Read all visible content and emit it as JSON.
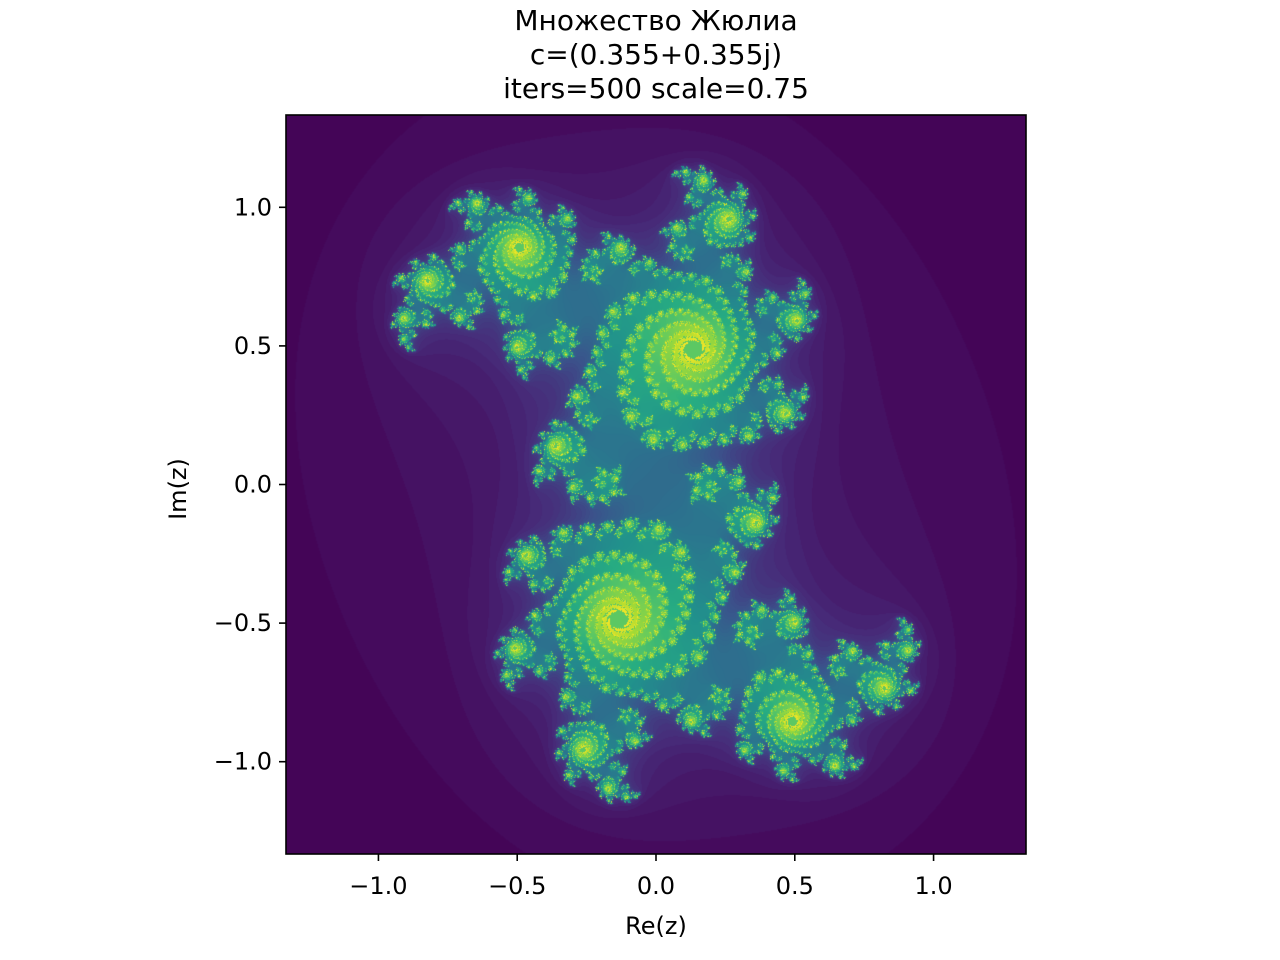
{
  "chart_data": {
    "type": "heatmap",
    "title": [
      "Множество Жюлиа",
      "c=(0.355+0.355j)",
      "iters=500 scale=0.75"
    ],
    "xlabel": "Re(z)",
    "ylabel": "Im(z)",
    "xlim": [
      -1.333,
      1.333
    ],
    "ylim": [
      -1.333,
      1.333
    ],
    "xticks": [
      -1.0,
      -0.5,
      0.0,
      0.5,
      1.0
    ],
    "xtick_labels": [
      "−1.0",
      "−0.5",
      "0.0",
      "0.5",
      "1.0"
    ],
    "yticks": [
      1.0,
      0.5,
      0.0,
      -0.5,
      -1.0
    ],
    "ytick_labels": [
      "1.0",
      "0.5",
      "0.0",
      "−0.5",
      "−1.0"
    ],
    "grid": false,
    "colormap": "viridis",
    "c": [
      0.355,
      0.355
    ],
    "iters": 500,
    "scale": 0.75,
    "background_color": "#440154"
  }
}
